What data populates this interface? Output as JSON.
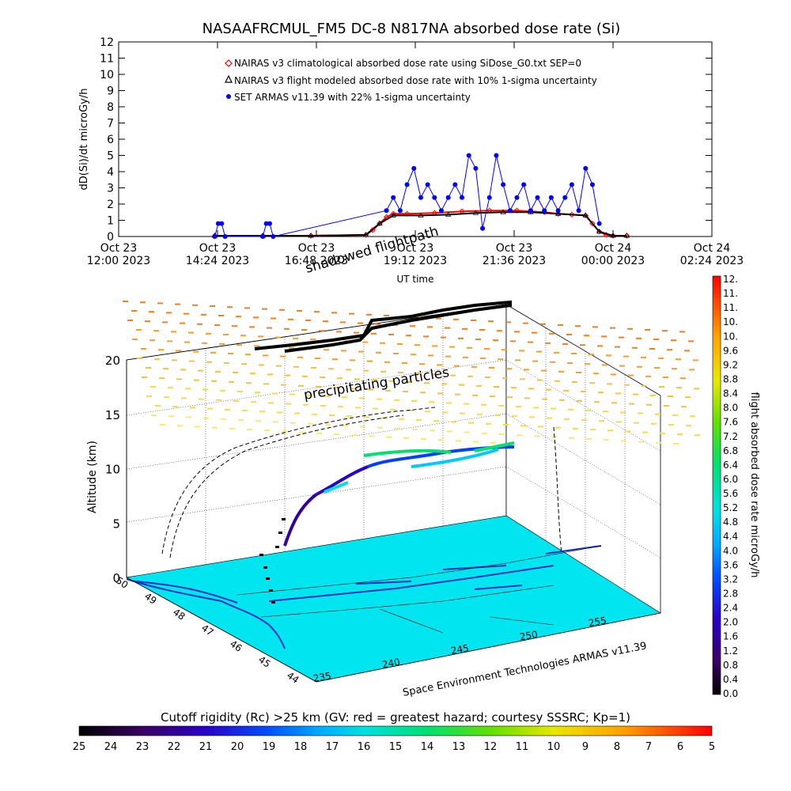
{
  "chart_data": [
    {
      "type": "line",
      "title": "NASAAFRCMUL_FM5 DC-8   N817NA absorbed dose rate (Si)",
      "xlabel": "UT time",
      "ylabel": "dD(Si)/dt microGy/h",
      "ylim": [
        0,
        12
      ],
      "y_ticks": [
        "0",
        "1",
        "2",
        "3",
        "4",
        "5",
        "6",
        "7",
        "8",
        "9",
        "10",
        "11",
        "12"
      ],
      "x_ticks": [
        {
          "top": "Oct 23",
          "bottom": "12:00 2023"
        },
        {
          "top": "Oct 23",
          "bottom": "14:24 2023"
        },
        {
          "top": "Oct 23",
          "bottom": "16:48 2023"
        },
        {
          "top": "Oct 23",
          "bottom": "19:12 2023"
        },
        {
          "top": "Oct 23",
          "bottom": "21:36 2023"
        },
        {
          "top": "Oct 24",
          "bottom": "00:00 2023"
        },
        {
          "top": "Oct 24",
          "bottom": "02:24 2023"
        }
      ],
      "xlim": [
        "2023-10-23 12:00",
        "2023-10-24 02:24"
      ],
      "legend_position": "top-left",
      "series": [
        {
          "name": "NAIRAS v3 climatological absorbed dose rate using SiDose_G0.txt SEP=0",
          "color": "#ff0000",
          "marker": "diamond",
          "x": [
            "2023-10-23 14:20",
            "2023-10-23 15:30",
            "2023-10-23 16:40",
            "2023-10-23 18:00",
            "2023-10-23 18:10",
            "2023-10-23 18:20",
            "2023-10-23 18:30",
            "2023-10-23 18:40",
            "2023-10-23 19:00",
            "2023-10-23 19:40",
            "2023-10-23 20:20",
            "2023-10-23 21:00",
            "2023-10-23 21:40",
            "2023-10-23 22:00",
            "2023-10-23 22:20",
            "2023-10-23 22:40",
            "2023-10-23 23:00",
            "2023-10-23 23:20",
            "2023-10-23 23:30",
            "2023-10-23 23:40",
            "2023-10-23 23:50",
            "2023-10-24 00:00",
            "2023-10-24 00:20"
          ],
          "y": [
            0.05,
            0.05,
            0.05,
            0.1,
            0.4,
            0.8,
            1.2,
            1.4,
            1.4,
            1.45,
            1.55,
            1.6,
            1.6,
            1.55,
            1.5,
            1.4,
            1.35,
            1.3,
            0.8,
            0.3,
            0.1,
            0.05,
            0.05
          ]
        },
        {
          "name": "NAIRAS v3 flight modeled absorbed dose rate with 10% 1-sigma uncertainty",
          "color": "#000000",
          "marker": "triangle",
          "x": [
            "2023-10-23 14:20",
            "2023-10-23 15:30",
            "2023-10-23 16:40",
            "2023-10-23 18:00",
            "2023-10-23 18:20",
            "2023-10-23 18:40",
            "2023-10-23 19:20",
            "2023-10-23 20:00",
            "2023-10-23 20:40",
            "2023-10-23 21:20",
            "2023-10-23 22:00",
            "2023-10-23 22:40",
            "2023-10-23 23:20",
            "2023-10-23 23:40",
            "2023-10-24 00:00",
            "2023-10-24 00:20"
          ],
          "y": [
            0.05,
            0.05,
            0.05,
            0.1,
            0.8,
            1.3,
            1.3,
            1.35,
            1.45,
            1.5,
            1.5,
            1.4,
            1.3,
            0.3,
            0.05,
            0.05
          ]
        },
        {
          "name": "SET ARMAS v11.39 with 22% 1-sigma uncertainty",
          "color": "#0000ff",
          "marker": "circle",
          "x": [
            "2023-10-23 14:20",
            "2023-10-23 14:25",
            "2023-10-23 14:30",
            "2023-10-23 14:35",
            "2023-10-23 15:30",
            "2023-10-23 15:35",
            "2023-10-23 15:40",
            "2023-10-23 15:45",
            "2023-10-23 18:30",
            "2023-10-23 18:40",
            "2023-10-23 18:50",
            "2023-10-23 19:00",
            "2023-10-23 19:10",
            "2023-10-23 19:20",
            "2023-10-23 19:30",
            "2023-10-23 19:40",
            "2023-10-23 19:50",
            "2023-10-23 20:00",
            "2023-10-23 20:10",
            "2023-10-23 20:20",
            "2023-10-23 20:30",
            "2023-10-23 20:40",
            "2023-10-23 20:50",
            "2023-10-23 21:00",
            "2023-10-23 21:10",
            "2023-10-23 21:20",
            "2023-10-23 21:30",
            "2023-10-23 21:40",
            "2023-10-23 21:50",
            "2023-10-23 22:00",
            "2023-10-23 22:10",
            "2023-10-23 22:20",
            "2023-10-23 22:30",
            "2023-10-23 22:40",
            "2023-10-23 22:50",
            "2023-10-23 23:00",
            "2023-10-23 23:10",
            "2023-10-23 23:20",
            "2023-10-23 23:30",
            "2023-10-23 23:40"
          ],
          "y": [
            0,
            0.8,
            0.8,
            0,
            0,
            0.8,
            0.8,
            0,
            1.6,
            2.4,
            1.6,
            3.2,
            4.2,
            2.4,
            3.2,
            2.4,
            1.6,
            2.4,
            3.2,
            2.4,
            5.0,
            4.2,
            0.5,
            2.4,
            5.0,
            3.2,
            1.6,
            2.4,
            3.2,
            1.6,
            2.4,
            1.6,
            2.4,
            1.6,
            2.4,
            3.2,
            1.6,
            4.2,
            3.2,
            0.8
          ]
        }
      ]
    },
    {
      "type": "scatter",
      "title": "",
      "zlabel": "Altitude (km)",
      "z_ticks": [
        "0",
        "5",
        "10",
        "15",
        "20"
      ],
      "lon_ticks": [
        "235",
        "240",
        "245",
        "250",
        "255"
      ],
      "lat_ticks": [
        "44",
        "45",
        "46",
        "47",
        "48",
        "49",
        "50"
      ],
      "annotations": [
        "shadowed flightpath",
        "precipitating particles",
        "Space Environment Technologies ARMAS v11.39"
      ],
      "colorbar": {
        "label": "flight absorbed dose rate microGy/h",
        "ticks": [
          "0.0",
          "0.4",
          "0.8",
          "1.2",
          "1.6",
          "2.0",
          "2.4",
          "2.8",
          "3.2",
          "3.6",
          "4.0",
          "4.4",
          "4.8",
          "5.2",
          "5.6",
          "6.0",
          "6.4",
          "6.8",
          "7.2",
          "7.6",
          "8.0",
          "8.4",
          "8.8",
          "9.2",
          "9.6",
          "10.",
          "10.",
          "11.",
          "11.",
          "12."
        ],
        "min": 0,
        "max": 12
      },
      "rigidity_bar": {
        "label": "Cutoff rigidity (Rc) >25 km (GV: red = greatest hazard; courtesy SSSRC; Kp=1)",
        "ticks": [
          "25",
          "24",
          "23",
          "22",
          "21",
          "20",
          "19",
          "18",
          "17",
          "16",
          "15",
          "14",
          "13",
          "12",
          "11",
          "10",
          "9",
          "8",
          "7",
          "6",
          "5"
        ]
      }
    }
  ]
}
